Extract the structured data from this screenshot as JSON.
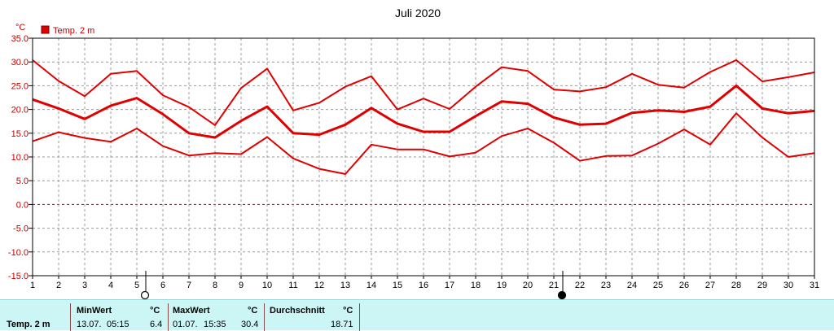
{
  "chart_data": {
    "type": "line",
    "title": "Juli 2020",
    "yunit": "°C",
    "ylim": [
      -15,
      35
    ],
    "yticks": [
      "35.0",
      "30.0",
      "25.0",
      "20.0",
      "15.0",
      "10.0",
      "5.0",
      "0.0",
      "-5.0",
      "-10.0",
      "-15.0"
    ],
    "x": [
      1,
      2,
      3,
      4,
      5,
      6,
      7,
      8,
      9,
      10,
      11,
      12,
      13,
      14,
      15,
      16,
      17,
      18,
      19,
      20,
      21,
      22,
      23,
      24,
      25,
      26,
      27,
      28,
      29,
      30,
      31
    ],
    "legend": {
      "label": "Temp. 2 m",
      "placement": "top-left"
    },
    "grid": true,
    "series": [
      {
        "name": "Temp. 2 m",
        "role": "max",
        "values": [
          30.4,
          26.0,
          22.8,
          27.5,
          28.1,
          23.0,
          20.5,
          16.7,
          24.5,
          28.6,
          19.8,
          21.4,
          24.8,
          27.0,
          20.0,
          22.3,
          20.1,
          24.8,
          28.9,
          28.1,
          24.2,
          23.8,
          24.7,
          27.5,
          25.2,
          24.6,
          27.9,
          30.4,
          25.9,
          26.8,
          27.8
        ],
        "color": "#e00000",
        "width": 2
      },
      {
        "name": "Temp. 2 m",
        "role": "mean",
        "values": [
          22.1,
          20.2,
          18.0,
          20.8,
          22.4,
          19.0,
          15.0,
          14.1,
          17.6,
          20.6,
          15.0,
          14.7,
          16.8,
          20.3,
          17.0,
          15.3,
          15.3,
          18.6,
          21.7,
          21.2,
          18.3,
          16.8,
          17.0,
          19.3,
          19.8,
          19.5,
          20.6,
          25.0,
          20.2,
          19.2,
          19.7
        ],
        "color": "#e00000",
        "width": 3
      },
      {
        "name": "Temp. 2 m",
        "role": "min",
        "values": [
          13.3,
          15.2,
          14.0,
          13.2,
          16.0,
          12.3,
          10.3,
          10.8,
          10.6,
          14.2,
          9.7,
          7.5,
          6.4,
          12.6,
          11.6,
          11.6,
          10.1,
          10.9,
          14.4,
          16.0,
          13.0,
          9.2,
          10.2,
          10.3,
          12.8,
          15.8,
          12.6,
          19.2,
          14.1,
          10.0,
          10.8
        ],
        "color": "#e00000",
        "width": 2
      }
    ],
    "moon_phases": [
      {
        "day": 5,
        "phase": "full-moon",
        "icon": "empty-circle-icon"
      },
      {
        "day": 21,
        "phase": "new-moon",
        "icon": "filled-circle-icon"
      }
    ]
  },
  "stats": {
    "series_label": "Temp. 2 m",
    "min": {
      "label": "MinWert",
      "unit": "°C",
      "date": "13.07.",
      "time": "05:15",
      "value": "6.4"
    },
    "max": {
      "label": "MaxWert",
      "unit": "°C",
      "date": "01.07.",
      "time": "15:35",
      "value": "30.4"
    },
    "avg": {
      "label": "Durchschnitt",
      "unit": "°C",
      "value": "18.71"
    }
  },
  "colors": {
    "series": "#e00000",
    "stats_bg": "#ccf5f5",
    "axis": "#000000",
    "grid": "#999999",
    "zero_line": "#b00000"
  }
}
